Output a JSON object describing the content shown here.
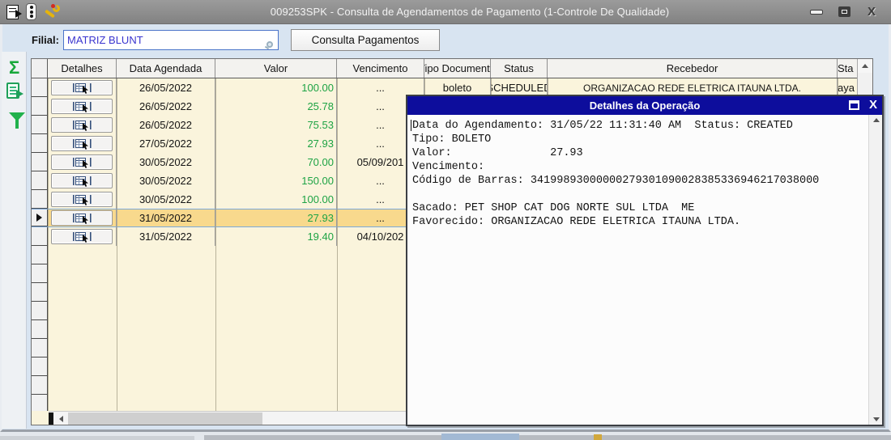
{
  "window": {
    "title": "009253SPK - Consulta de Agendamentos de Pagamento (1-Controle De Qualidade)",
    "close_glyph": "X"
  },
  "toolbar": {
    "filial_label": "Filial:",
    "filial_value": "MATRIZ BLUNT",
    "consulta_button_label": "Consulta Pagamentos"
  },
  "side_toolbar": {
    "sigma_glyph": "Σ"
  },
  "grid": {
    "headers": [
      "",
      "Detalhes",
      "Data Agendada",
      "Valor",
      "Vencimento",
      "Tipo Documento",
      "Status",
      "Recebedor",
      "Sta"
    ],
    "rows": [
      {
        "data_agendada": "26/05/2022",
        "valor": "100.00",
        "vencimento": "...",
        "tipo_documento": "boleto",
        "status": "SCHEDULED",
        "recebedor": "ORGANIZACAO REDE ELETRICA ITAUNA LTDA.",
        "sta": "aya",
        "selected": false
      },
      {
        "data_agendada": "26/05/2022",
        "valor": "25.78",
        "vencimento": "...",
        "selected": false
      },
      {
        "data_agendada": "26/05/2022",
        "valor": "75.53",
        "vencimento": "...",
        "selected": false
      },
      {
        "data_agendada": "27/05/2022",
        "valor": "27.93",
        "vencimento": "...",
        "selected": false
      },
      {
        "data_agendada": "30/05/2022",
        "valor": "70.00",
        "vencimento": "05/09/201",
        "selected": false
      },
      {
        "data_agendada": "30/05/2022",
        "valor": "150.00",
        "vencimento": "...",
        "selected": false
      },
      {
        "data_agendada": "30/05/2022",
        "valor": "100.00",
        "vencimento": "...",
        "selected": false
      },
      {
        "data_agendada": "31/05/2022",
        "valor": "27.93",
        "vencimento": "...",
        "selected": true
      },
      {
        "data_agendada": "31/05/2022",
        "valor": "19.40",
        "vencimento": "04/10/202",
        "selected": false
      }
    ]
  },
  "popup": {
    "title": "Detalhes da Operação",
    "close_glyph": "X",
    "lines": [
      "Data do Agendamento: 31/05/22 11:31:40 AM  Status: CREATED",
      "Tipo: BOLETO",
      "Valor:               27.93",
      "Vencimento:",
      "Código de Barras: 34199893000000279301090028385336946217038000",
      "",
      "Sacado: PET SHOP CAT DOG NORTE SUL LTDA  ME",
      "Favorecido: ORGANIZACAO REDE ELETRICA ITAUNA LTDA."
    ]
  },
  "colors": {
    "selection_bg": "#f8d98d",
    "value_green": "#1da344",
    "popup_titlebar_blue": "#0d0d9c",
    "input_text_blue": "#3a35cf",
    "row_cream": "#faf4dc"
  }
}
